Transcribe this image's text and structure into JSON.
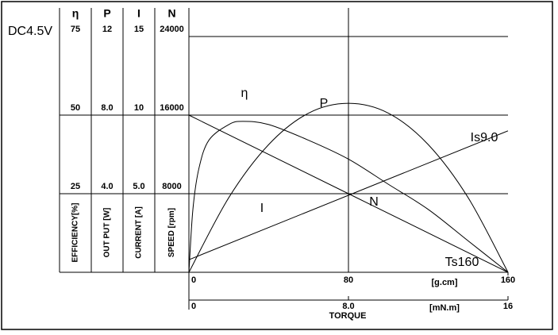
{
  "chart_data": {
    "type": "motor-curve",
    "voltage": "DC4.5V",
    "xlabel": "TORQUE",
    "x_unit": "[g.cm]",
    "x2_unit": "[mN.m]",
    "xlim": [
      0,
      160
    ],
    "xticks": [
      0,
      80,
      160
    ],
    "x2lim": [
      0,
      16
    ],
    "x2ticks": [
      0,
      {
        "value": 8,
        "label": "8.0"
      },
      16
    ],
    "axes": [
      {
        "symbol": "η",
        "label": "EFFICIENCY[%]",
        "lim": [
          0,
          75
        ],
        "ticks": [
          25,
          50,
          75
        ]
      },
      {
        "symbol": "P",
        "label": "OUT PUT [W]",
        "lim": [
          0,
          12
        ],
        "ticks": [
          {
            "value": 4,
            "label": "4.0"
          },
          {
            "value": 8,
            "label": "8.0"
          },
          12
        ]
      },
      {
        "symbol": "I",
        "label": "CURRENT [A]",
        "lim": [
          0,
          15
        ],
        "ticks": [
          {
            "value": 5,
            "label": "5.0"
          },
          10,
          15
        ]
      },
      {
        "symbol": "N",
        "label": "SPEED [rpm]",
        "lim": [
          0,
          24000
        ],
        "ticks": [
          8000,
          16000,
          24000
        ]
      }
    ],
    "series": [
      {
        "name": "η",
        "axis": 0,
        "color": "#000000",
        "x": [
          0,
          2,
          5,
          10,
          20,
          27,
          40,
          60,
          80,
          100,
          120,
          140,
          160
        ],
        "values": [
          0,
          20,
          33,
          42,
          47,
          48,
          47,
          42,
          36,
          28,
          20,
          10,
          0
        ]
      },
      {
        "name": "P",
        "axis": 1,
        "color": "#000000",
        "x": [
          0,
          20,
          40,
          60,
          80,
          100,
          120,
          140,
          160
        ],
        "values": [
          0,
          3.8,
          6.5,
          8.1,
          8.6,
          8.1,
          6.5,
          3.8,
          0
        ]
      },
      {
        "name": "I",
        "axis": 2,
        "color": "#000000",
        "x": [
          0,
          160
        ],
        "values": [
          0.8,
          9.0
        ]
      },
      {
        "name": "N",
        "axis": 3,
        "color": "#000000",
        "x": [
          0,
          160
        ],
        "values": [
          16000,
          0
        ]
      }
    ],
    "annotations": [
      "Is9.0",
      "Ts160"
    ]
  }
}
